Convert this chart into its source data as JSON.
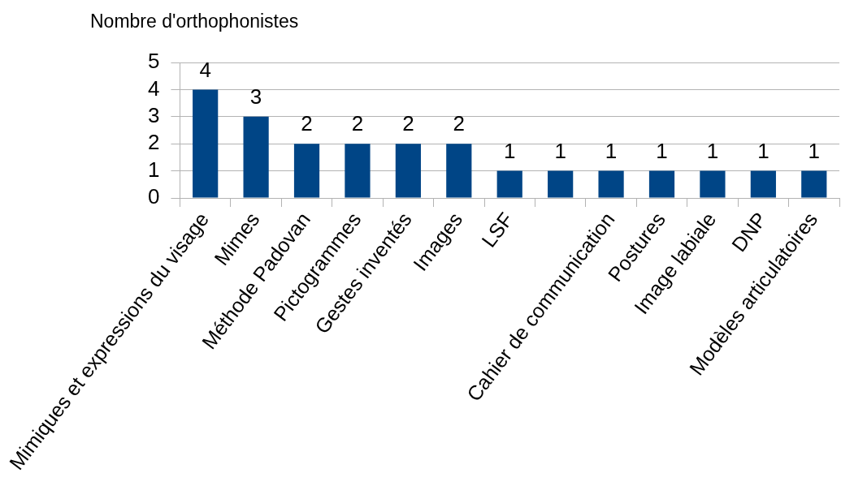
{
  "chart_data": {
    "type": "bar",
    "ylabel": "Nombre d'orthophonistes",
    "categories": [
      "Mimiques et expressions du visage",
      "Mimes",
      "Méthode Padovan",
      "Pictogrammes",
      "Gestes inventés",
      "Images",
      "LSF",
      null,
      "Cahier de communication",
      "Postures",
      "Image labiale",
      "DNP",
      "Modèles articulatoires"
    ],
    "values": [
      4,
      3,
      2,
      2,
      2,
      2,
      1,
      1,
      1,
      1,
      1,
      1,
      1
    ],
    "color": "#004586",
    "ylim": [
      0,
      5
    ],
    "yticks": [
      0,
      1,
      2,
      3,
      4,
      5
    ],
    "grid": "y",
    "data_labels": true
  }
}
